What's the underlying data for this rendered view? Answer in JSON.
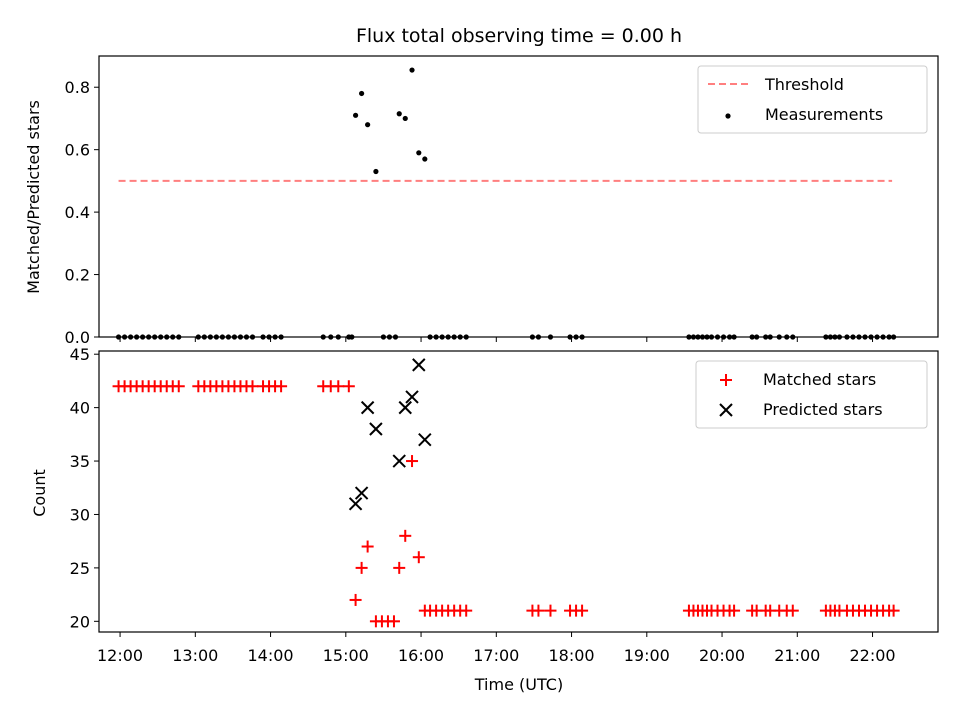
{
  "chart_data": [
    {
      "type": "scatter",
      "title": "Flux total observing time = 0.00 h",
      "ylabel": "Matched/Predicted stars",
      "xlabel": "",
      "xlim": [
        11.72,
        22.87
      ],
      "ylim": [
        0.0,
        0.9
      ],
      "yticks": [
        0.0,
        0.2,
        0.4,
        0.6,
        0.8
      ],
      "ytick_labels": [
        "0.0",
        "0.2",
        "0.4",
        "0.6",
        "0.8"
      ],
      "xticks": [
        12,
        13,
        14,
        15,
        16,
        17,
        18,
        19,
        20,
        21,
        22
      ],
      "grid": false,
      "legend": {
        "placement": "top-right",
        "entries": [
          "Threshold",
          "Measurements"
        ]
      },
      "threshold": {
        "name": "Threshold",
        "value": 0.5,
        "x_range": [
          11.98,
          22.26
        ],
        "color": "#ff7f7f",
        "style": "dashed"
      },
      "series": [
        {
          "name": "Measurements",
          "color": "#000000",
          "points": [
            [
              11.98,
              0
            ],
            [
              12.06,
              0
            ],
            [
              12.14,
              0
            ],
            [
              12.22,
              0
            ],
            [
              12.3,
              0
            ],
            [
              12.38,
              0
            ],
            [
              12.46,
              0
            ],
            [
              12.54,
              0
            ],
            [
              12.62,
              0
            ],
            [
              12.7,
              0
            ],
            [
              12.78,
              0
            ],
            [
              13.04,
              0
            ],
            [
              13.12,
              0
            ],
            [
              13.2,
              0
            ],
            [
              13.28,
              0
            ],
            [
              13.36,
              0
            ],
            [
              13.44,
              0
            ],
            [
              13.52,
              0
            ],
            [
              13.6,
              0
            ],
            [
              13.68,
              0
            ],
            [
              13.76,
              0
            ],
            [
              13.9,
              0
            ],
            [
              13.98,
              0
            ],
            [
              14.06,
              0
            ],
            [
              14.14,
              0
            ],
            [
              14.7,
              0
            ],
            [
              14.8,
              0
            ],
            [
              14.9,
              0
            ],
            [
              15.04,
              0
            ],
            [
              15.08,
              0
            ],
            [
              15.13,
              0.71
            ],
            [
              15.21,
              0.78
            ],
            [
              15.29,
              0.68
            ],
            [
              15.4,
              0.53
            ],
            [
              15.71,
              0.715
            ],
            [
              15.79,
              0.7
            ],
            [
              15.88,
              0.855
            ],
            [
              15.97,
              0.59
            ],
            [
              16.05,
              0.57
            ],
            [
              15.5,
              0
            ],
            [
              15.58,
              0
            ],
            [
              15.66,
              0
            ],
            [
              16.12,
              0
            ],
            [
              16.2,
              0
            ],
            [
              16.28,
              0
            ],
            [
              16.36,
              0
            ],
            [
              16.44,
              0
            ],
            [
              16.52,
              0
            ],
            [
              16.6,
              0
            ],
            [
              17.48,
              0
            ],
            [
              17.56,
              0
            ],
            [
              17.72,
              0
            ],
            [
              17.98,
              0
            ],
            [
              18.06,
              0
            ],
            [
              18.14,
              0
            ],
            [
              19.56,
              0
            ],
            [
              19.62,
              0
            ],
            [
              19.68,
              0
            ],
            [
              19.74,
              0
            ],
            [
              19.8,
              0
            ],
            [
              19.86,
              0
            ],
            [
              19.94,
              0
            ],
            [
              20.02,
              0
            ],
            [
              20.1,
              0
            ],
            [
              20.16,
              0
            ],
            [
              20.4,
              0
            ],
            [
              20.46,
              0
            ],
            [
              20.58,
              0
            ],
            [
              20.64,
              0
            ],
            [
              20.76,
              0
            ],
            [
              20.86,
              0
            ],
            [
              20.94,
              0
            ],
            [
              21.38,
              0
            ],
            [
              21.44,
              0
            ],
            [
              21.5,
              0
            ],
            [
              21.56,
              0
            ],
            [
              21.66,
              0
            ],
            [
              21.74,
              0
            ],
            [
              21.82,
              0
            ],
            [
              21.9,
              0
            ],
            [
              21.98,
              0
            ],
            [
              22.06,
              0
            ],
            [
              22.14,
              0
            ],
            [
              22.22,
              0
            ],
            [
              22.28,
              0
            ]
          ]
        }
      ]
    },
    {
      "type": "scatter",
      "title": "",
      "xlabel": "Time (UTC)",
      "ylabel": "Count",
      "xlim": [
        11.72,
        22.87
      ],
      "ylim": [
        19,
        45.3
      ],
      "yticks": [
        20,
        25,
        30,
        35,
        40,
        45
      ],
      "ytick_labels": [
        "20",
        "25",
        "30",
        "35",
        "40",
        "45"
      ],
      "xticks": [
        12,
        13,
        14,
        15,
        16,
        17,
        18,
        19,
        20,
        21,
        22
      ],
      "xtick_labels": [
        "12:00",
        "13:00",
        "14:00",
        "15:00",
        "16:00",
        "17:00",
        "18:00",
        "19:00",
        "20:00",
        "21:00",
        "22:00"
      ],
      "grid": false,
      "legend": {
        "placement": "top-right",
        "entries": [
          "Matched stars",
          "Predicted stars"
        ]
      },
      "series": [
        {
          "name": "Matched stars",
          "marker": "plus",
          "color": "#ff0000",
          "points": [
            [
              11.98,
              42
            ],
            [
              12.06,
              42
            ],
            [
              12.14,
              42
            ],
            [
              12.22,
              42
            ],
            [
              12.3,
              42
            ],
            [
              12.38,
              42
            ],
            [
              12.46,
              42
            ],
            [
              12.54,
              42
            ],
            [
              12.62,
              42
            ],
            [
              12.7,
              42
            ],
            [
              12.78,
              42
            ],
            [
              13.04,
              42
            ],
            [
              13.12,
              42
            ],
            [
              13.2,
              42
            ],
            [
              13.28,
              42
            ],
            [
              13.36,
              42
            ],
            [
              13.44,
              42
            ],
            [
              13.52,
              42
            ],
            [
              13.6,
              42
            ],
            [
              13.68,
              42
            ],
            [
              13.76,
              42
            ],
            [
              13.9,
              42
            ],
            [
              13.98,
              42
            ],
            [
              14.06,
              42
            ],
            [
              14.14,
              42
            ],
            [
              14.7,
              42
            ],
            [
              14.8,
              42
            ],
            [
              14.9,
              42
            ],
            [
              15.04,
              42
            ],
            [
              15.13,
              22
            ],
            [
              15.21,
              25
            ],
            [
              15.29,
              27
            ],
            [
              15.4,
              20
            ],
            [
              15.48,
              20
            ],
            [
              15.56,
              20
            ],
            [
              15.64,
              20
            ],
            [
              15.71,
              25
            ],
            [
              15.79,
              28
            ],
            [
              15.88,
              35
            ],
            [
              15.97,
              26
            ],
            [
              16.05,
              21
            ],
            [
              16.12,
              21
            ],
            [
              16.2,
              21
            ],
            [
              16.28,
              21
            ],
            [
              16.36,
              21
            ],
            [
              16.44,
              21
            ],
            [
              16.52,
              21
            ],
            [
              16.6,
              21
            ],
            [
              17.48,
              21
            ],
            [
              17.56,
              21
            ],
            [
              17.72,
              21
            ],
            [
              17.98,
              21
            ],
            [
              18.06,
              21
            ],
            [
              18.14,
              21
            ],
            [
              19.56,
              21
            ],
            [
              19.62,
              21
            ],
            [
              19.68,
              21
            ],
            [
              19.74,
              21
            ],
            [
              19.8,
              21
            ],
            [
              19.86,
              21
            ],
            [
              19.94,
              21
            ],
            [
              20.02,
              21
            ],
            [
              20.1,
              21
            ],
            [
              20.16,
              21
            ],
            [
              20.4,
              21
            ],
            [
              20.46,
              21
            ],
            [
              20.58,
              21
            ],
            [
              20.64,
              21
            ],
            [
              20.76,
              21
            ],
            [
              20.86,
              21
            ],
            [
              20.94,
              21
            ],
            [
              21.38,
              21
            ],
            [
              21.44,
              21
            ],
            [
              21.5,
              21
            ],
            [
              21.56,
              21
            ],
            [
              21.66,
              21
            ],
            [
              21.74,
              21
            ],
            [
              21.82,
              21
            ],
            [
              21.9,
              21
            ],
            [
              21.98,
              21
            ],
            [
              22.06,
              21
            ],
            [
              22.14,
              21
            ],
            [
              22.22,
              21
            ],
            [
              22.28,
              21
            ]
          ]
        },
        {
          "name": "Predicted stars",
          "marker": "x",
          "color": "#000000",
          "points": [
            [
              15.13,
              31
            ],
            [
              15.21,
              32
            ],
            [
              15.29,
              40
            ],
            [
              15.4,
              38
            ],
            [
              15.71,
              35
            ],
            [
              15.79,
              40
            ],
            [
              15.88,
              41
            ],
            [
              15.97,
              44
            ],
            [
              16.05,
              37
            ]
          ]
        }
      ]
    }
  ]
}
